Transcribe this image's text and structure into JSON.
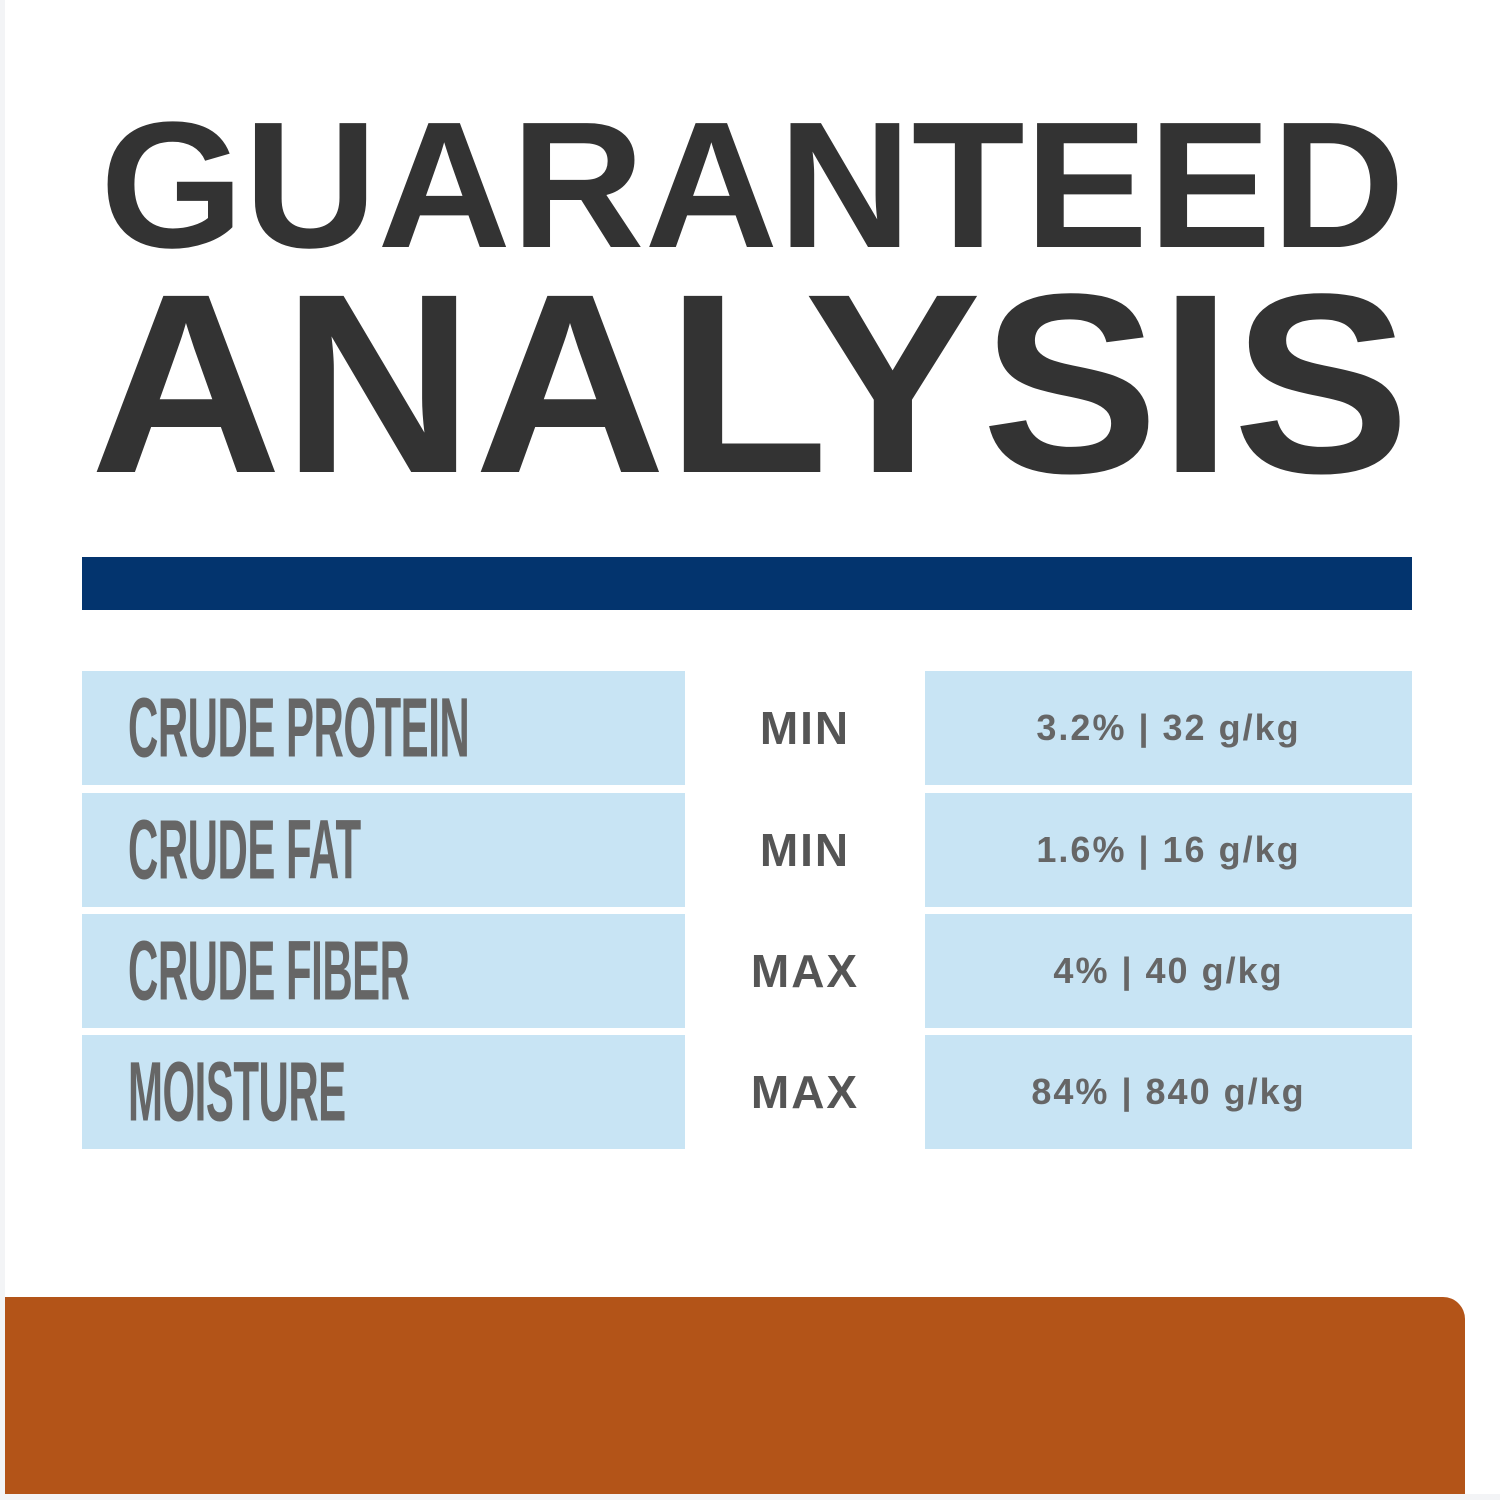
{
  "header": {
    "line1": "GUARANTEED",
    "line2": "ANALYSIS"
  },
  "colors": {
    "title": "#333333",
    "rule": "#03346e",
    "cell": "#c8e4f4",
    "footer": "#b35418"
  },
  "table": {
    "rows": [
      {
        "label": "CRUDE PROTEIN",
        "qualifier": "MIN",
        "value": "3.2% | 32 g/kg"
      },
      {
        "label": "CRUDE FAT",
        "qualifier": "MIN",
        "value": "1.6% | 16 g/kg"
      },
      {
        "label": "CRUDE FIBER",
        "qualifier": "MAX",
        "value": "4% | 40 g/kg"
      },
      {
        "label": "MOISTURE",
        "qualifier": "MAX",
        "value": "84% | 840 g/kg"
      }
    ]
  }
}
